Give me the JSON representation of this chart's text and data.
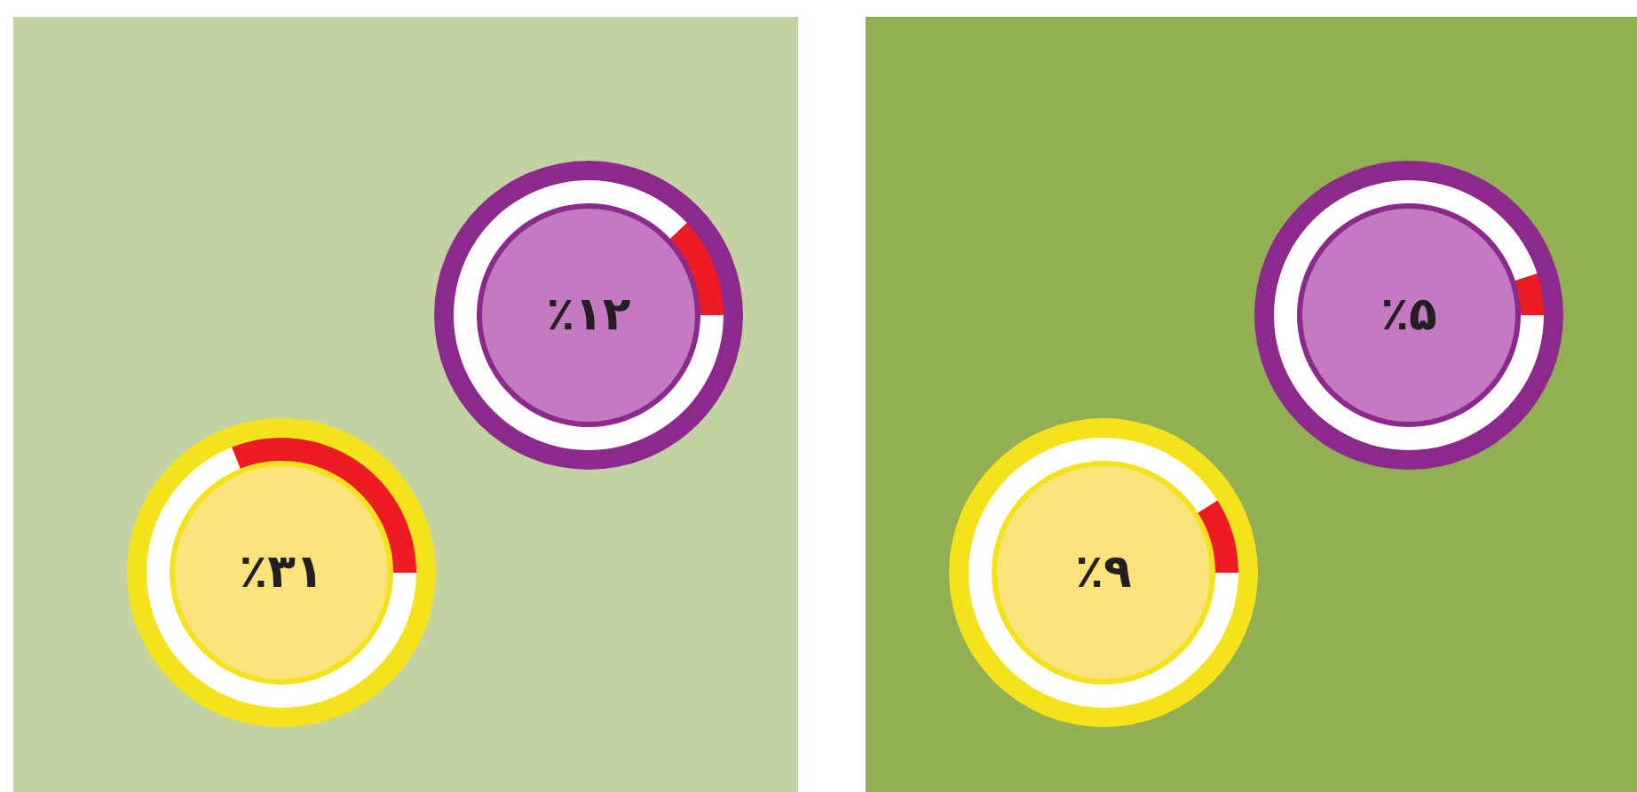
{
  "chart_data": [
    {
      "type": "donut",
      "categories": [
        null,
        null
      ],
      "values": [
        12,
        88
      ],
      "colors": [
        "#ed1c24",
        "#ffffff"
      ],
      "annotations": [
        "٪۱۲"
      ]
    },
    {
      "type": "donut",
      "categories": [
        null,
        null
      ],
      "values": [
        31,
        69
      ],
      "colors": [
        "#ed1c24",
        "#ffffff"
      ],
      "annotations": [
        "٪۳۱"
      ]
    },
    {
      "type": "donut",
      "categories": [
        null,
        null
      ],
      "values": [
        5,
        95
      ],
      "colors": [
        "#ed1c24",
        "#ffffff"
      ],
      "annotations": [
        "٪۵"
      ]
    },
    {
      "type": "donut",
      "categories": [
        null,
        null
      ],
      "values": [
        9,
        91
      ],
      "colors": [
        "#ed1c24",
        "#ffffff"
      ],
      "annotations": [
        "٪۹"
      ]
    }
  ]
}
